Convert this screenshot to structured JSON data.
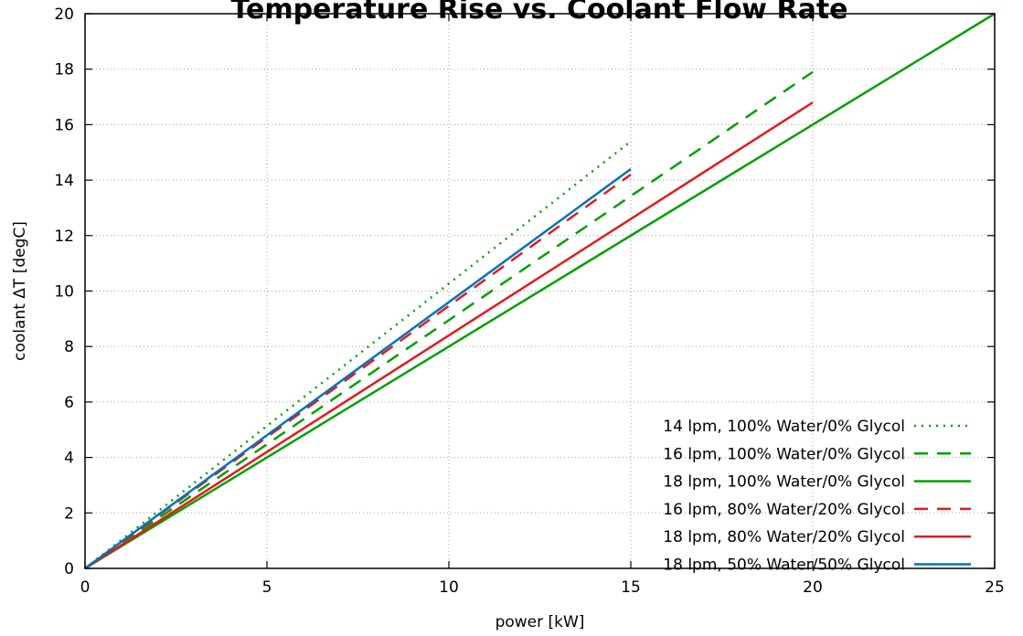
{
  "chart_data": {
    "type": "line",
    "title": "Temperature Rise vs. Coolant Flow Rate",
    "xlabel": "power [kW]",
    "ylabel": "coolant ΔT [degC]",
    "xlim": [
      0,
      25
    ],
    "ylim": [
      0,
      20
    ],
    "xticks": [
      0,
      5,
      10,
      15,
      20,
      25
    ],
    "yticks": [
      0,
      2,
      4,
      6,
      8,
      10,
      12,
      14,
      16,
      18,
      20
    ],
    "grid": true,
    "legend_position": "bottom-right",
    "series": [
      {
        "name": "14 lpm, 100% Water/0% Glycol",
        "color": "#00a000",
        "dash": "dotted",
        "x": [
          0,
          15
        ],
        "y": [
          0,
          15.4
        ]
      },
      {
        "name": "16 lpm, 100% Water/0% Glycol",
        "color": "#00a000",
        "dash": "dashed",
        "x": [
          0,
          20
        ],
        "y": [
          0,
          17.9
        ]
      },
      {
        "name": "18 lpm, 100% Water/0% Glycol",
        "color": "#00a000",
        "dash": "solid",
        "x": [
          0,
          25
        ],
        "y": [
          0,
          20.0
        ]
      },
      {
        "name": "16 lpm, 80% Water/20% Glycol",
        "color": "#e41a1c",
        "dash": "dashed",
        "x": [
          0,
          15
        ],
        "y": [
          0,
          14.2
        ]
      },
      {
        "name": "18 lpm, 80% Water/20% Glycol",
        "color": "#e41a1c",
        "dash": "solid",
        "x": [
          0,
          20
        ],
        "y": [
          0,
          16.8
        ]
      },
      {
        "name": "18 lpm, 50% Water/50% Glycol",
        "color": "#0072bd",
        "dash": "solid",
        "x": [
          0,
          15
        ],
        "y": [
          0,
          14.4
        ]
      }
    ]
  }
}
